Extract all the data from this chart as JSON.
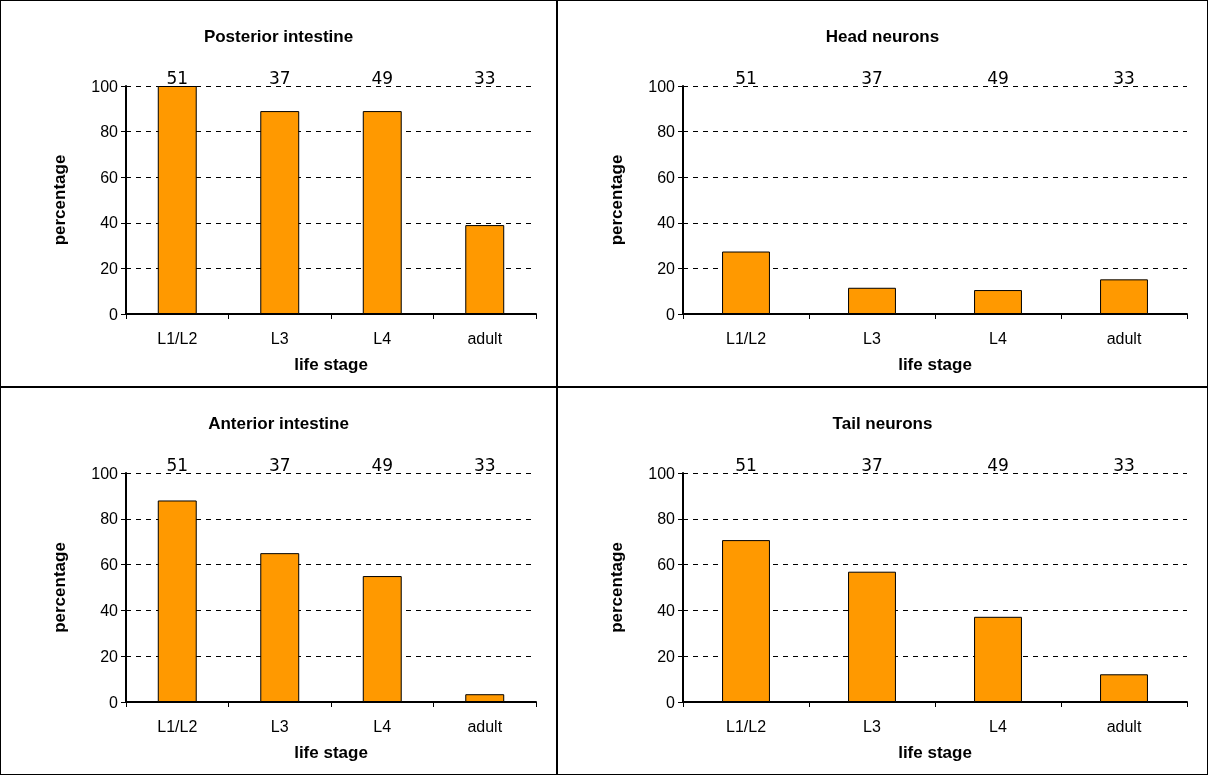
{
  "chart_data": [
    {
      "type": "bar",
      "title": "Posterior intestine",
      "xlabel": "life stage",
      "ylabel": "percentage",
      "categories": [
        "L1/L2",
        "L3",
        "L4",
        "adult"
      ],
      "values": [
        100,
        89,
        89,
        39
      ],
      "color": "#ff9900",
      "ylim": [
        0,
        100
      ],
      "yticks": [
        0,
        20,
        40,
        60,
        80,
        100
      ],
      "grid": "y",
      "annotations": [
        "51",
        "37",
        "49",
        "33"
      ]
    },
    {
      "type": "bar",
      "title": "Head neurons",
      "xlabel": "life stage",
      "ylabel": "percentage",
      "categories": [
        "L1/L2",
        "L3",
        "L4",
        "adult"
      ],
      "values": [
        27.4,
        11.5,
        10.5,
        15.2
      ],
      "color": "#ff9900",
      "ylim": [
        0,
        100
      ],
      "yticks": [
        0,
        20,
        40,
        60,
        80,
        100
      ],
      "grid": "y",
      "annotations": [
        "51",
        "37",
        "49",
        "33"
      ]
    },
    {
      "type": "bar",
      "title": "Anterior intestine",
      "xlabel": "life stage",
      "ylabel": "percentage",
      "categories": [
        "L1/L2",
        "L3",
        "L4",
        "adult"
      ],
      "values": [
        88,
        65,
        55,
        3.4
      ],
      "color": "#ff9900",
      "ylim": [
        0,
        100
      ],
      "yticks": [
        0,
        20,
        40,
        60,
        80,
        100
      ],
      "grid": "y",
      "annotations": [
        "51",
        "37",
        "49",
        "33"
      ]
    },
    {
      "type": "bar",
      "title": "Tail neurons",
      "xlabel": "life stage",
      "ylabel": "percentage",
      "categories": [
        "L1/L2",
        "L3",
        "L4",
        "adult"
      ],
      "values": [
        70.7,
        56.9,
        37.2,
        12.1
      ],
      "color": "#ff9900",
      "ylim": [
        0,
        100
      ],
      "yticks": [
        0,
        20,
        40,
        60,
        80,
        100
      ],
      "grid": "y",
      "annotations": [
        "51",
        "37",
        "49",
        "33"
      ]
    }
  ]
}
